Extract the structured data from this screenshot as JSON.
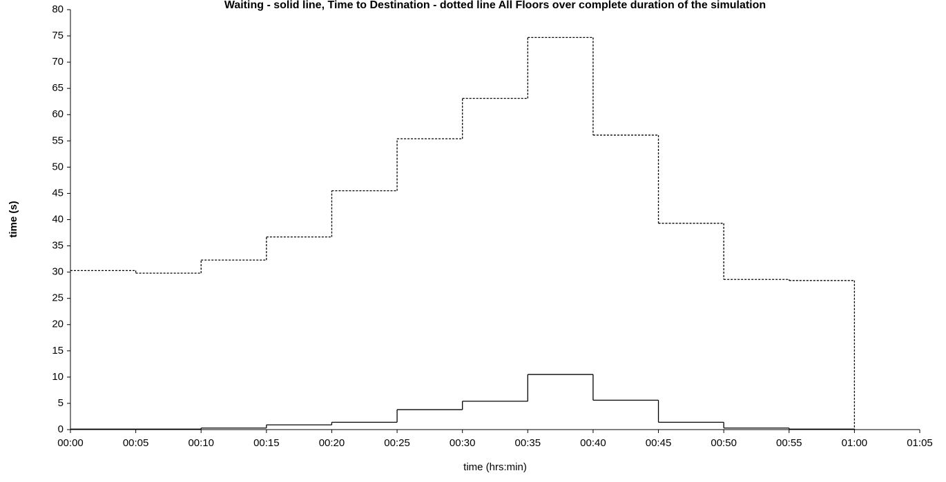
{
  "chart_data": {
    "type": "step",
    "title": "Waiting - solid line, Time to Destination - dotted line  All Floors over complete duration of the simulation",
    "xlabel": "time (hrs:min)",
    "ylabel": "time (s)",
    "x": [
      0,
      5,
      10,
      15,
      20,
      25,
      30,
      35,
      40,
      45,
      50,
      55,
      60
    ],
    "series": [
      {
        "name": "Waiting",
        "color": "#000000",
        "dash": false,
        "values": [
          0.1,
          0.1,
          0.3,
          0.9,
          1.4,
          3.8,
          5.4,
          10.5,
          5.6,
          1.4,
          0.3,
          0.1,
          0
        ]
      },
      {
        "name": "Time to Destination",
        "color": "#000000",
        "dash": true,
        "values": [
          30.3,
          29.8,
          32.3,
          36.7,
          45.5,
          55.4,
          63.1,
          74.7,
          56.1,
          39.3,
          28.6,
          28.4,
          0
        ]
      }
    ],
    "xlim": [
      0,
      65
    ],
    "xticks": [
      {
        "value": 0,
        "label": "00:00"
      },
      {
        "value": 5,
        "label": "00:05"
      },
      {
        "value": 10,
        "label": "00:10"
      },
      {
        "value": 15,
        "label": "00:15"
      },
      {
        "value": 20,
        "label": "00:20"
      },
      {
        "value": 25,
        "label": "00:25"
      },
      {
        "value": 30,
        "label": "00:30"
      },
      {
        "value": 35,
        "label": "00:35"
      },
      {
        "value": 40,
        "label": "00:40"
      },
      {
        "value": 45,
        "label": "00:45"
      },
      {
        "value": 50,
        "label": "00:50"
      },
      {
        "value": 55,
        "label": "00:55"
      },
      {
        "value": 60,
        "label": "01:00"
      },
      {
        "value": 65,
        "label": "01:05"
      }
    ],
    "ylim": [
      0,
      80
    ],
    "yticks": [
      0,
      5,
      10,
      15,
      20,
      25,
      30,
      35,
      40,
      45,
      50,
      55,
      60,
      65,
      70,
      75,
      80
    ],
    "grid": false
  }
}
